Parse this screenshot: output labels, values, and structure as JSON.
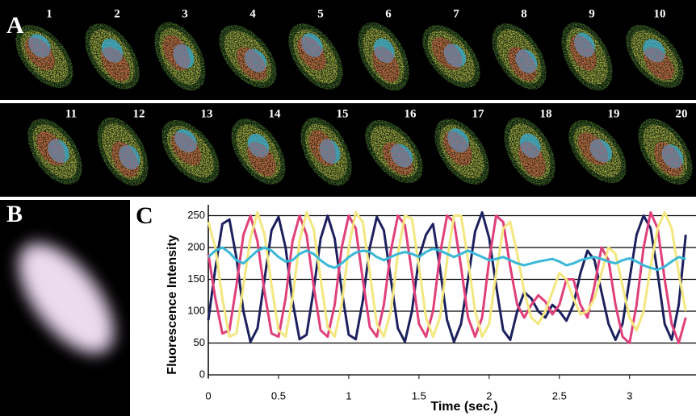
{
  "figure": {
    "panel_a": {
      "label": "A",
      "frames": [
        "1",
        "2",
        "3",
        "4",
        "5",
        "6",
        "7",
        "8",
        "9",
        "10",
        "11",
        "12",
        "13",
        "14",
        "15",
        "16",
        "17",
        "18",
        "19",
        "20"
      ]
    },
    "panel_b": {
      "label": "B"
    }
  },
  "chart_data": {
    "type": "line",
    "panel_label": "C",
    "xlabel": "Time (sec.)",
    "ylabel": "Fluorescence Intensity",
    "x": [
      0,
      0.05,
      0.1,
      0.15,
      0.2,
      0.25,
      0.3,
      0.35,
      0.4,
      0.45,
      0.5,
      0.55,
      0.6,
      0.65,
      0.7,
      0.75,
      0.8,
      0.85,
      0.9,
      0.95,
      1,
      1.05,
      1.1,
      1.15,
      1.2,
      1.25,
      1.3,
      1.35,
      1.4,
      1.45,
      1.5,
      1.55,
      1.6,
      1.65,
      1.7,
      1.75,
      1.8,
      1.85,
      1.9,
      1.95,
      2,
      2.05,
      2.1,
      2.15,
      2.2,
      2.25,
      2.3,
      2.35,
      2.4,
      2.45,
      2.5,
      2.55,
      2.6,
      2.65,
      2.7,
      2.75,
      2.8,
      2.85,
      2.9,
      2.95,
      3,
      3.05,
      3.1,
      3.15,
      3.2,
      3.25,
      3.3,
      3.35,
      3.4
    ],
    "series": [
      {
        "color": "#1c215e",
        "values": [
          86,
          167,
          237,
          244,
          184,
          100,
          52,
          73,
          150,
          227,
          248,
          200,
          116,
          56,
          63,
          133,
          214,
          250,
          214,
          133,
          63,
          56,
          116,
          200,
          248,
          227,
          150,
          73,
          52,
          100,
          184,
          220,
          237,
          167,
          86,
          52,
          80,
          150,
          225,
          255,
          215,
          140,
          70,
          55,
          100,
          130,
          120,
          100,
          90,
          110,
          100,
          85,
          110,
          160,
          195,
          180,
          130,
          80,
          55,
          80,
          150,
          220,
          250,
          230,
          160,
          80,
          55,
          110,
          220
        ]
      },
      {
        "color": "#e0407a",
        "values": [
          190,
          120,
          65,
          70,
          140,
          220,
          250,
          210,
          130,
          65,
          60,
          120,
          210,
          250,
          220,
          140,
          70,
          60,
          110,
          200,
          250,
          230,
          150,
          75,
          60,
          110,
          195,
          250,
          235,
          160,
          80,
          60,
          100,
          190,
          250,
          240,
          170,
          90,
          60,
          90,
          180,
          250,
          240,
          170,
          110,
          90,
          110,
          125,
          115,
          95,
          110,
          150,
          150,
          110,
          90,
          140,
          200,
          180,
          110,
          60,
          50,
          110,
          200,
          255,
          230,
          150,
          80,
          50,
          90
        ]
      },
      {
        "color": "#f3e77e",
        "values": [
          240,
          200,
          120,
          60,
          65,
          140,
          215,
          255,
          220,
          140,
          70,
          60,
          120,
          210,
          255,
          230,
          150,
          75,
          60,
          110,
          200,
          255,
          240,
          160,
          80,
          60,
          100,
          190,
          250,
          245,
          170,
          90,
          60,
          90,
          180,
          250,
          250,
          180,
          100,
          60,
          80,
          160,
          230,
          240,
          190,
          130,
          90,
          80,
          100,
          130,
          160,
          150,
          120,
          95,
          100,
          120,
          160,
          200,
          190,
          140,
          90,
          70,
          100,
          170,
          230,
          255,
          230,
          160,
          100
        ]
      },
      {
        "color": "#3ab8d8",
        "values": [
          185,
          195,
          200,
          192,
          180,
          175,
          185,
          195,
          200,
          195,
          185,
          178,
          180,
          190,
          195,
          190,
          180,
          172,
          168,
          175,
          185,
          192,
          195,
          193,
          185,
          180,
          185,
          190,
          193,
          190,
          185,
          193,
          198,
          195,
          190,
          185,
          190,
          195,
          190,
          185,
          180,
          182,
          185,
          180,
          175,
          172,
          175,
          178,
          180,
          182,
          178,
          172,
          175,
          180,
          183,
          185,
          182,
          178,
          175,
          180,
          183,
          178,
          172,
          168,
          165,
          170,
          178,
          185,
          182
        ]
      }
    ],
    "xlim": [
      0,
      3.45
    ],
    "ylim": [
      0,
      262
    ],
    "xticks": [
      0,
      0.5,
      1,
      1.5,
      2,
      2.5,
      3
    ],
    "yticks": [
      0,
      50,
      100,
      150,
      200,
      250
    ],
    "grid": true
  }
}
